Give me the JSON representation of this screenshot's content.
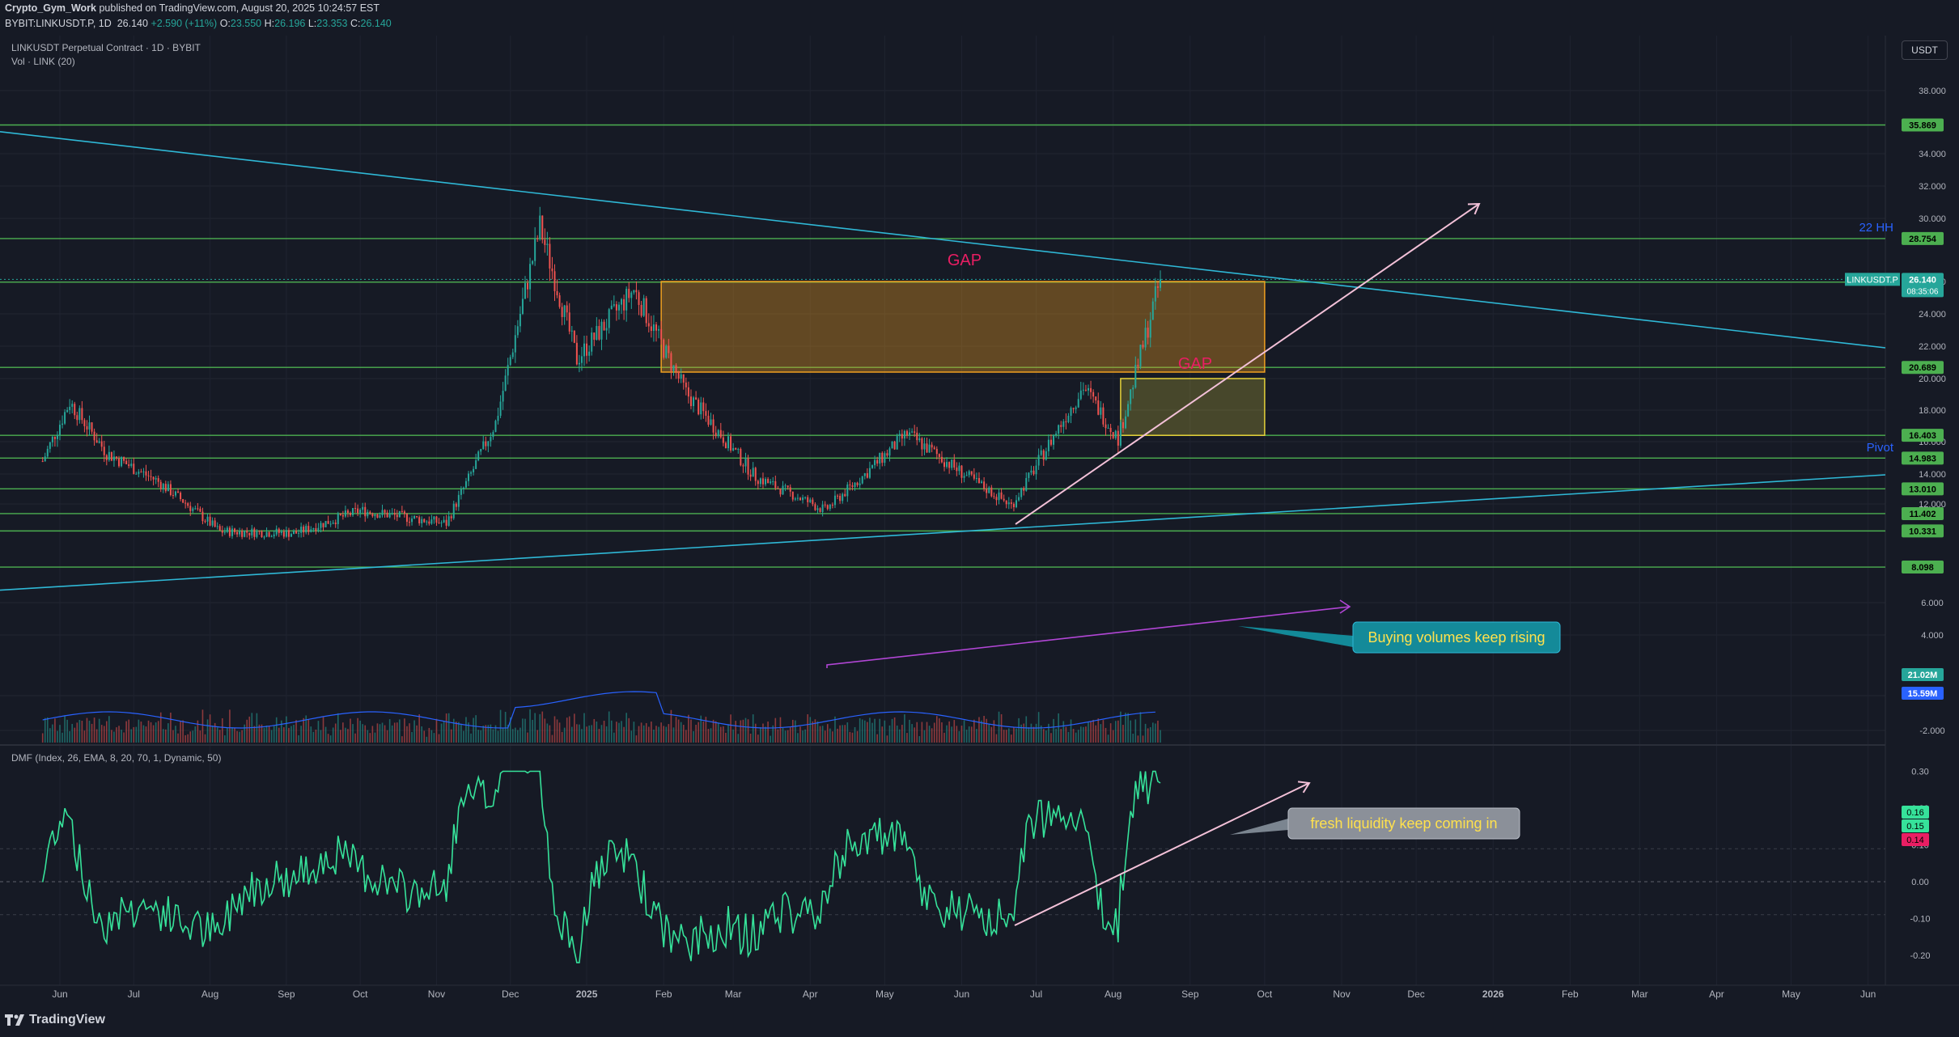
{
  "header": {
    "publisher": "Crypto_Gym_Work",
    "published": "published on TradingView.com, August 20, 2025 10:24:57 EST",
    "symbol_line": "BYBIT:LINKUSDT.P, 1D",
    "price": "26.140",
    "change": "+2.590 (+11%)",
    "o_label": "O:",
    "o": "23.550",
    "h_label": "H:",
    "h": "26.196",
    "l_label": "L:",
    "l": "23.353",
    "c_label": "C:",
    "c": "26.140"
  },
  "legend": {
    "title": "LINKUSDT Perpetual Contract · 1D · BYBIT",
    "vol": "Vol · LINK (20)",
    "dmf": "DMF (Index, 26, EMA, 8, 20, 70, 1, Dynamic, 50)"
  },
  "currency_button": "USDT",
  "brand": "TradingView",
  "colors": {
    "background": "#161a25",
    "up": "#26a69a",
    "down": "#ef5350",
    "level_line": "#4caf50",
    "trendline": "#2fb8d6",
    "gap_zone": "#f0a020",
    "arrow": "#f3c1d8",
    "volume_arrow": "#b246d6",
    "dmf_up": "#36e29a",
    "dmf_down": "#e91e63"
  },
  "chart_data": [
    {
      "type": "candlestick",
      "title": "LINKUSDT Perpetual Contract · 1D · BYBIT",
      "x_tick_labels": [
        "Jun",
        "Jul",
        "Aug",
        "Sep",
        "Oct",
        "Nov",
        "Dec",
        "2025",
        "Feb",
        "Mar",
        "Apr",
        "May",
        "Jun",
        "Jul",
        "Aug",
        "Sep",
        "Oct",
        "Nov",
        "Dec",
        "2026",
        "Feb",
        "Mar",
        "Apr",
        "May",
        "Jun"
      ],
      "y_tick_labels": [
        "38.000",
        "34.000",
        "32.000",
        "30.000",
        "26.000",
        "24.000",
        "22.000",
        "20.000",
        "18.000",
        "16.000",
        "14.000",
        "12.000",
        "6.000",
        "4.000",
        "2.000",
        "-2.000"
      ],
      "ylim": [
        -2.5,
        40
      ],
      "series": [
        {
          "name": "LINKUSDT.P",
          "close_approx": [
            {
              "x": "2024-05-25",
              "y": 14.8
            },
            {
              "x": "2024-06-05",
              "y": 18.5
            },
            {
              "x": "2024-06-20",
              "y": 15.3
            },
            {
              "x": "2024-07-10",
              "y": 13.6
            },
            {
              "x": "2024-08-05",
              "y": 10.3
            },
            {
              "x": "2024-09-05",
              "y": 10.2
            },
            {
              "x": "2024-10-01",
              "y": 11.6
            },
            {
              "x": "2024-11-05",
              "y": 10.8
            },
            {
              "x": "2024-11-25",
              "y": 17.2
            },
            {
              "x": "2024-12-13",
              "y": 29.5
            },
            {
              "x": "2024-12-28",
              "y": 21.2
            },
            {
              "x": "2025-01-20",
              "y": 25.5
            },
            {
              "x": "2025-02-10",
              "y": 19.1
            },
            {
              "x": "2025-03-10",
              "y": 13.8
            },
            {
              "x": "2025-04-07",
              "y": 11.6
            },
            {
              "x": "2025-05-10",
              "y": 16.5
            },
            {
              "x": "2025-06-21",
              "y": 11.9
            },
            {
              "x": "2025-07-20",
              "y": 19.5
            },
            {
              "x": "2025-08-03",
              "y": 16.2
            },
            {
              "x": "2025-08-20",
              "y": 26.14
            }
          ]
        }
      ],
      "price_levels": [
        "35.869",
        "28.754",
        "25.957",
        "20.689",
        "16.403",
        "14.983",
        "13.010",
        "11.402",
        "10.331",
        "8.098"
      ],
      "last_price_label": {
        "symbol": "LINKUSDT.P",
        "price": "26.140",
        "countdown": "08:35:06"
      },
      "annotations": {
        "gap1": "GAP",
        "gap2": "GAP",
        "hh": "22 HH",
        "pivot": "Pivot",
        "volume_note": "Buying volumes keep rising",
        "dmf_note": "fresh liquidity keep coming in"
      },
      "volume_labels": [
        "21.02M",
        "15.59M"
      ]
    },
    {
      "type": "line",
      "title": "DMF (Index, 26, EMA, 8, 20, 70, 1, Dynamic, 50)",
      "y_tick_labels": [
        "0.30",
        "0.20",
        "0.10",
        "0.00",
        "-0.10",
        "-0.20"
      ],
      "ylim": [
        -0.25,
        0.35
      ],
      "value_labels": [
        "0.16",
        "0.15",
        "0.14"
      ]
    }
  ]
}
